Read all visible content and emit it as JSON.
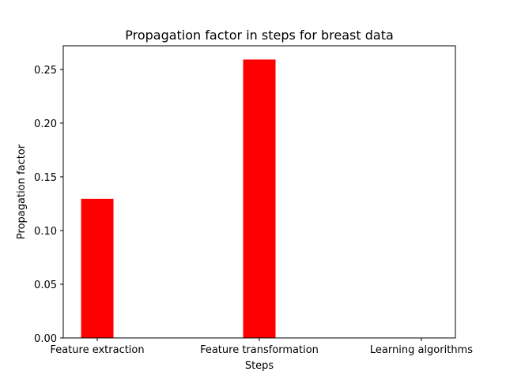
{
  "chart_data": {
    "type": "bar",
    "title": "Propagation factor in steps for breast data",
    "xlabel": "Steps",
    "ylabel": "Propagation factor",
    "categories": [
      "Feature extraction",
      "Feature transformation",
      "Learning algorithms"
    ],
    "values": [
      0.1295,
      0.2592,
      0.0
    ],
    "yticks": [
      "0.00",
      "0.05",
      "0.10",
      "0.15",
      "0.20",
      "0.25"
    ],
    "ylim": [
      0,
      0.272
    ],
    "bar_color": "#ff0000",
    "grid": false,
    "legend": "none"
  }
}
